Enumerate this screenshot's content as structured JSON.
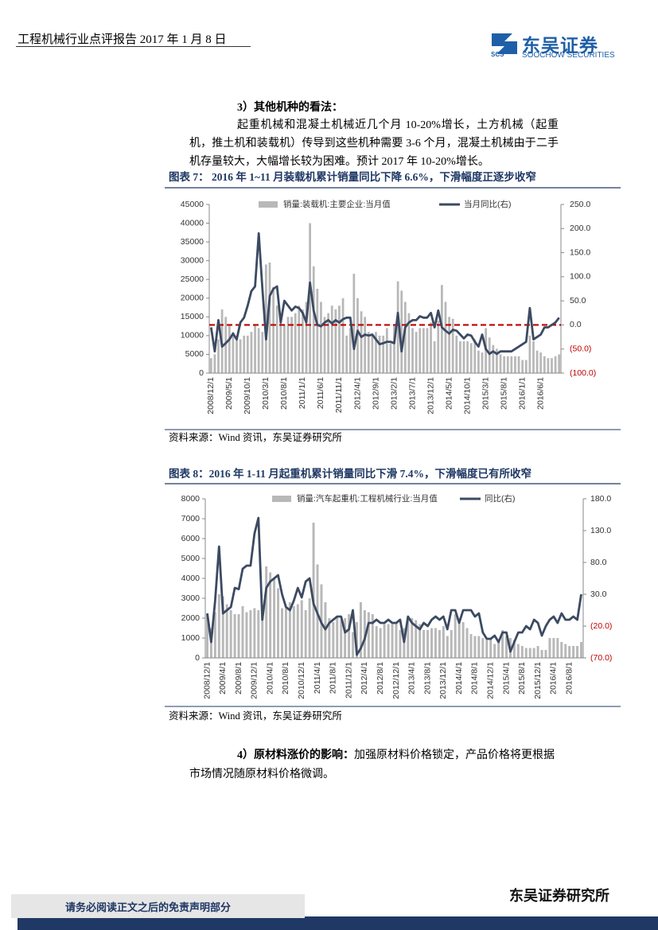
{
  "header": {
    "title": "工程机械行业点评报告 2017 年 1 月 8 日",
    "logo": {
      "mark": "SCS",
      "name": "东吴证券",
      "name_en": "SOOCHOW SECURITIES"
    }
  },
  "sections": [
    {
      "heading": "3）其他机种的看法：",
      "text": "起重机械和混凝土机械近几个月 10-20%增长，土方机械（起重机，推土机和装载机）传导到这些机种需要 3-6 个月，混凝土机械由于二手机存量较大，大幅增长较为困难。预计 2017 年 10-20%增长。"
    },
    {
      "heading": "4）原材料涨价的影响：",
      "text": "加强原材料价格锁定，产品价格将更根据市场情况随原材料价格微调。"
    }
  ],
  "chart_data": [
    {
      "type": "combo",
      "title": "图表 7： 2016 年 1~11 月装载机累计销量同比下降 6.6%，下滑幅度正逐步收窄",
      "categories": [
        "2008/12/1",
        null,
        null,
        null,
        null,
        "2009/5/1",
        null,
        null,
        null,
        null,
        "2009/10/1",
        null,
        null,
        null,
        null,
        "2010/3/1",
        null,
        null,
        null,
        null,
        "2010/8/1",
        null,
        null,
        null,
        null,
        "2011/1/1",
        null,
        null,
        null,
        null,
        "2011/6/1",
        null,
        null,
        null,
        null,
        "2011/11/1",
        null,
        null,
        null,
        null,
        "2012/4/1",
        null,
        null,
        null,
        null,
        "2012/9/1",
        null,
        null,
        null,
        null,
        "2013/2/1",
        null,
        null,
        null,
        null,
        "2013/7/1",
        null,
        null,
        null,
        null,
        "2013/12/1",
        null,
        null,
        null,
        null,
        "2014/5/1",
        null,
        null,
        null,
        null,
        "2014/10/1",
        null,
        null,
        null,
        null,
        "2015/3/1",
        null,
        null,
        null,
        null,
        "2015/8/1",
        null,
        null,
        null,
        null,
        "2016/1/1",
        null,
        null,
        null,
        null,
        "2016/6/1",
        null,
        null,
        null,
        null,
        null
      ],
      "series": [
        {
          "name": "销量:装载机:主要企业:当月值",
          "type": "bar",
          "color": "#b8b8b8",
          "values": [
            4000,
            5000,
            9000,
            17000,
            15000,
            13000,
            11000,
            9000,
            9000,
            10000,
            10000,
            11000,
            13000,
            12000,
            11000,
            29000,
            29500,
            23000,
            18000,
            14000,
            13000,
            15000,
            15000,
            16000,
            18000,
            17000,
            19000,
            40000,
            28500,
            22500,
            19000,
            15000,
            16000,
            18000,
            17000,
            18000,
            20000,
            10000,
            12000,
            26500,
            20000,
            16500,
            15000,
            11000,
            10000,
            11000,
            10000,
            10000,
            12000,
            8000,
            13000,
            24500,
            22000,
            19000,
            16000,
            12000,
            11000,
            12000,
            12000,
            12000,
            13500,
            8500,
            14000,
            23500,
            19000,
            15000,
            14500,
            10000,
            8500,
            8500,
            8500,
            8000,
            9000,
            6000,
            5500,
            12000,
            9500,
            7500,
            6500,
            5000,
            4500,
            4500,
            4500,
            4500,
            4500,
            3500,
            3500,
            10000,
            8500,
            6000,
            5500,
            4500,
            4000,
            4000,
            4500,
            5000
          ]
        },
        {
          "name": "当月同比(右)",
          "type": "line",
          "axis": "y2",
          "color": "#3c4a62",
          "values": [
            -5,
            -55,
            10,
            -45,
            -38,
            -30,
            -18,
            -30,
            5,
            15,
            40,
            70,
            80,
            190,
            75,
            -30,
            60,
            75,
            80,
            5,
            50,
            40,
            30,
            38,
            35,
            25,
            5,
            88,
            30,
            0,
            -3,
            5,
            10,
            3,
            10,
            5,
            12,
            15,
            15,
            -50,
            -12,
            -25,
            -20,
            -22,
            -20,
            -30,
            -40,
            -38,
            -35,
            -35,
            -38,
            25,
            -55,
            -5,
            5,
            10,
            10,
            18,
            15,
            15,
            25,
            -5,
            30,
            -5,
            -12,
            -18,
            -10,
            -12,
            -20,
            -28,
            -20,
            -22,
            -35,
            -45,
            -20,
            -50,
            -60,
            -55,
            -60,
            -55,
            -55,
            -55,
            -55,
            -50,
            -45,
            -40,
            -35,
            35,
            -30,
            -25,
            -20,
            -5,
            -5,
            0,
            5,
            15
          ]
        }
      ],
      "ylim": [
        0,
        45000
      ],
      "yticks": [
        0,
        5000,
        10000,
        15000,
        20000,
        25000,
        30000,
        35000,
        40000,
        45000
      ],
      "y2lim": [
        -100,
        250
      ],
      "y2ticks": [
        {
          "value": 250,
          "label": "250.0"
        },
        {
          "value": 200,
          "label": "200.0"
        },
        {
          "value": 150,
          "label": "150.0"
        },
        {
          "value": 100,
          "label": "100.0"
        },
        {
          "value": 50,
          "label": "50.0"
        },
        {
          "value": 0,
          "label": "0.0"
        },
        {
          "value": -50,
          "label": "(50.0)"
        },
        {
          "value": -100,
          "label": "(100.0)"
        }
      ],
      "negative_label_color": "#c00000",
      "reference_line": {
        "value": 0,
        "axis": "y2",
        "color": "#c00000",
        "style": "dashed"
      },
      "legend": "top",
      "grid": false,
      "source": "资料来源：Wind 资讯，东吴证券研究所"
    },
    {
      "type": "combo",
      "title": "图表 8：2016 年 1-11 月起重机累计销量同比下滑 7.4%，下滑幅度已有所收窄",
      "categories": [
        "2008/12/1",
        null,
        null,
        null,
        "2009/4/1",
        null,
        null,
        null,
        "2009/8/1",
        null,
        null,
        null,
        "2009/12/1",
        null,
        null,
        null,
        "2010/4/1",
        null,
        null,
        null,
        "2010/8/1",
        null,
        null,
        null,
        "2010/12/1",
        null,
        null,
        null,
        "2011/4/1",
        null,
        null,
        null,
        "2011/8/1",
        null,
        null,
        null,
        "2011/12/1",
        null,
        null,
        null,
        "2012/4/1",
        null,
        null,
        null,
        "2012/8/1",
        null,
        null,
        null,
        "2012/12/1",
        null,
        null,
        null,
        "2013/4/1",
        null,
        null,
        null,
        "2013/8/1",
        null,
        null,
        null,
        "2013/12/1",
        null,
        null,
        null,
        "2014/4/1",
        null,
        null,
        null,
        "2014/8/1",
        null,
        null,
        null,
        "2014/12/1",
        null,
        null,
        null,
        "2015/4/1",
        null,
        null,
        null,
        "2015/8/1",
        null,
        null,
        null,
        "2015/12/1",
        null,
        null,
        null,
        "2016/4/1",
        null,
        null,
        null,
        "2016/8/1",
        null,
        null,
        null
      ],
      "series": [
        {
          "name": "销量:汽车起重机:工程机械行业:当月值",
          "type": "bar",
          "color": "#b8b8b8",
          "values": [
            2200,
            1500,
            2300,
            3200,
            3100,
            2700,
            2400,
            2200,
            2200,
            2600,
            2300,
            2400,
            2500,
            2400,
            2500,
            4600,
            4300,
            4000,
            3500,
            2500,
            2500,
            2800,
            2600,
            2700,
            2900,
            2400,
            3000,
            6800,
            4700,
            3700,
            2800,
            2000,
            1800,
            2100,
            1900,
            2000,
            2200,
            1300,
            1800,
            2800,
            2400,
            2300,
            2200,
            1600,
            1500,
            1700,
            1700,
            1700,
            1800,
            1400,
            1500,
            2100,
            2000,
            1900,
            1700,
            1400,
            1400,
            1500,
            1500,
            1400,
            1600,
            1100,
            1400,
            2200,
            2000,
            1800,
            1500,
            1200,
            1100,
            1100,
            1000,
            900,
            1000,
            700,
            800,
            1400,
            1100,
            1000,
            900,
            700,
            600,
            500,
            500,
            500,
            600,
            400,
            400,
            1000,
            1000,
            1000,
            800,
            700,
            600,
            600,
            600,
            800
          ]
        },
        {
          "name": "同比(右)",
          "type": "line",
          "axis": "y2",
          "color": "#3c4a62",
          "values": [
            0,
            -45,
            20,
            105,
            0,
            5,
            10,
            40,
            38,
            70,
            75,
            75,
            125,
            150,
            -10,
            40,
            50,
            55,
            60,
            30,
            10,
            5,
            20,
            40,
            25,
            50,
            55,
            15,
            0,
            -15,
            -25,
            -15,
            -10,
            -5,
            -5,
            -30,
            -25,
            5,
            -65,
            -55,
            -40,
            -15,
            -15,
            -10,
            -15,
            -15,
            -10,
            -15,
            -15,
            -10,
            -45,
            -5,
            -15,
            -20,
            -25,
            -15,
            -20,
            -10,
            -5,
            -10,
            -5,
            -25,
            5,
            5,
            -15,
            5,
            5,
            5,
            -5,
            0,
            -30,
            -40,
            -40,
            -35,
            -45,
            -30,
            -30,
            -60,
            -45,
            -30,
            -30,
            -20,
            -25,
            -10,
            -15,
            -35,
            -20,
            -10,
            -5,
            -15,
            0,
            -10,
            -10,
            -5,
            -10,
            30
          ]
        }
      ],
      "ylim": [
        0,
        8000
      ],
      "yticks": [
        0,
        1000,
        2000,
        3000,
        4000,
        5000,
        6000,
        7000,
        8000
      ],
      "y2lim": [
        -70,
        180
      ],
      "y2ticks": [
        {
          "value": 180,
          "label": "180.0"
        },
        {
          "value": 130,
          "label": "130.0"
        },
        {
          "value": 80,
          "label": "80.0"
        },
        {
          "value": 30,
          "label": "30.0"
        },
        {
          "value": -20,
          "label": "(20.0)"
        },
        {
          "value": -70,
          "label": "(70.0)"
        }
      ],
      "negative_label_color": "#c00000",
      "legend": "top",
      "grid": false,
      "source": "资料来源：Wind 资讯，东吴证券研究所"
    }
  ],
  "footer": {
    "disclaimer": "请务必阅读正文之后的免责声明部分",
    "institute": "东吴证券研究所"
  }
}
